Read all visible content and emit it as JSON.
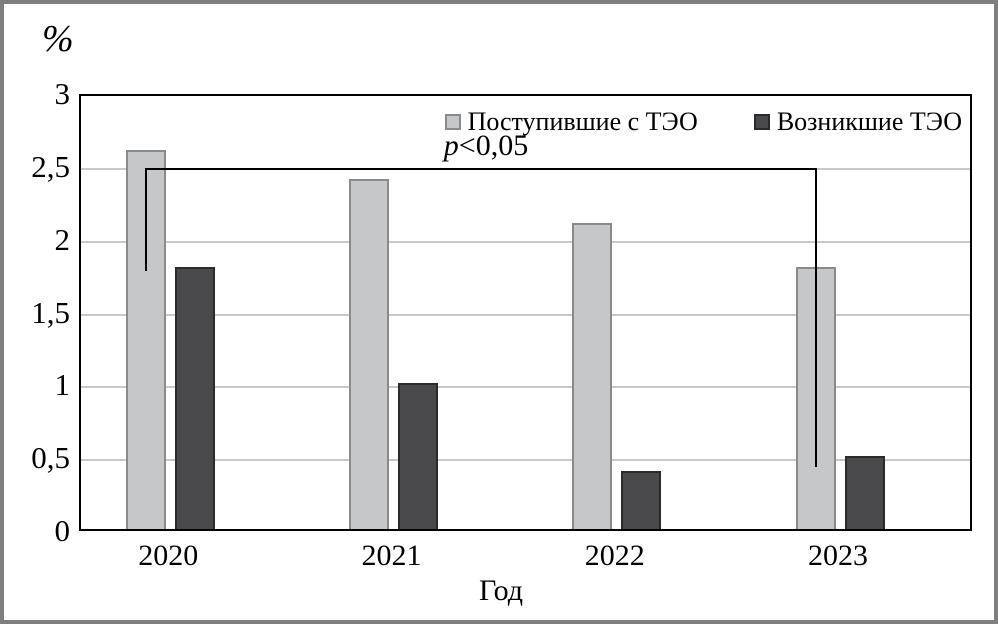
{
  "figure": {
    "background": "#ffffff",
    "outer_border_color": "#7f7f7f"
  },
  "chart_data": {
    "type": "bar",
    "title": "",
    "ylabel": "%",
    "xlabel": "Год",
    "ylim": [
      0,
      3
    ],
    "ytick_step": 0.5,
    "ytick_labels": [
      "0",
      "0,5",
      "1",
      "1,5",
      "2",
      "2,5",
      "3"
    ],
    "grid": true,
    "grid_color": "#c9c9c9",
    "frame_color": "#000000",
    "categories": [
      "2020",
      "2021",
      "2022",
      "2023"
    ],
    "series": [
      {
        "name": "Поступившие с ТЭО",
        "values": [
          2.6,
          2.4,
          2.1,
          1.8
        ],
        "color": "#c6c7c9",
        "border_color": "#8a8a8c"
      },
      {
        "name": "Возникшие ТЭО",
        "values": [
          1.8,
          1.0,
          0.4,
          0.5
        ],
        "color": "#4a4a4c",
        "border_color": "#2b2b2b"
      }
    ],
    "legend_position": "top-right-inside",
    "annotation": {
      "text": "p<0,05",
      "italic_part": "p",
      "regular_part": "<0,05",
      "bracket": {
        "y_level": 2.5,
        "from_category": "2020",
        "from_series": "Поступившие с ТЭО",
        "from_drop_to": 1.8,
        "to_category": "2023",
        "to_series": "Поступившие с ТЭО",
        "to_drop_to": 0.45
      }
    }
  }
}
